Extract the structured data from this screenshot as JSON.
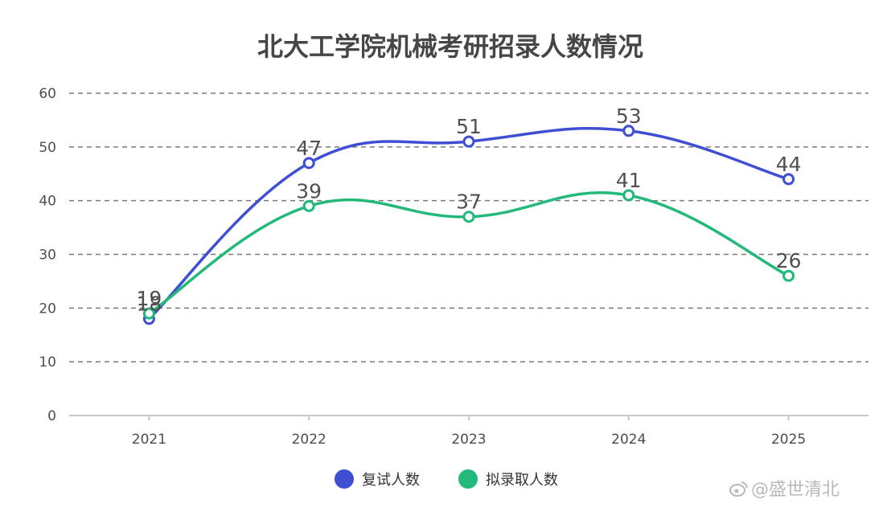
{
  "chart_data": {
    "type": "line",
    "title": "北大工学院机械考研招录人数情况",
    "categories": [
      "2021",
      "2022",
      "2023",
      "2024",
      "2025"
    ],
    "y_ticks": [
      "0",
      "10",
      "20",
      "30",
      "40",
      "50",
      "60"
    ],
    "ylim": [
      0,
      60
    ],
    "grid": true,
    "smooth": true,
    "legend_position": "bottom",
    "series": [
      {
        "name": "复试人数",
        "color": "#3F4FD4",
        "values": [
          18,
          47,
          51,
          53,
          44
        ]
      },
      {
        "name": "拟录取人数",
        "color": "#22B97A",
        "values": [
          19,
          39,
          37,
          41,
          26
        ]
      }
    ]
  },
  "watermark": "@盛世清北"
}
